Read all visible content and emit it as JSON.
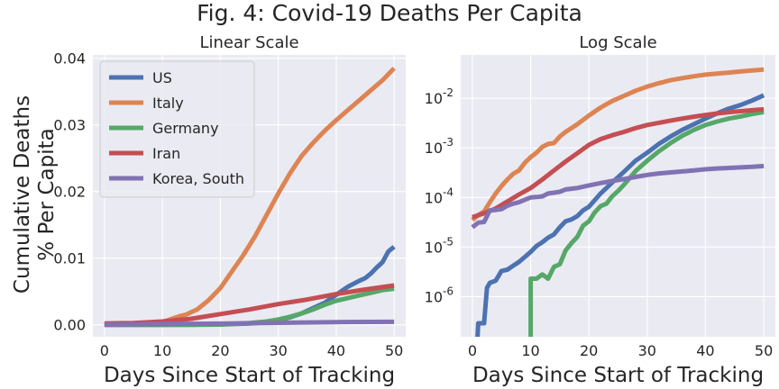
{
  "figure": {
    "title": "Fig. 4: Covid-19 Deaths Per Capita",
    "background": "#ffffff",
    "panel_color": "#eaeaf2"
  },
  "chart_data": [
    {
      "type": "line",
      "title": "Linear Scale",
      "xlabel": "Days Since Start of Tracking",
      "ylabel": [
        "Cumulative Deaths",
        "% Per Capita"
      ],
      "xlim": [
        -2,
        52
      ],
      "ylim": [
        -0.0018,
        0.0405
      ],
      "xticks": [
        0,
        10,
        20,
        30,
        40,
        50
      ],
      "yticks": [
        0.0,
        0.01,
        0.02,
        0.03,
        0.04
      ],
      "ytick_labels": [
        "0.00",
        "0.01",
        "0.02",
        "0.03",
        "0.04"
      ],
      "grid": true,
      "legend": "upper-left",
      "series": [
        {
          "name": "US",
          "color": "#4c72b0",
          "x": [
            0,
            5,
            10,
            15,
            20,
            25,
            28,
            30,
            32,
            34,
            36,
            38,
            40,
            42,
            44,
            45,
            46,
            47,
            48,
            49,
            50
          ],
          "y": [
            0,
            0,
            0,
            1e-05,
            5e-05,
            0.0002,
            0.0004,
            0.0007,
            0.0011,
            0.0017,
            0.0025,
            0.0033,
            0.0045,
            0.0057,
            0.0066,
            0.007,
            0.0077,
            0.0086,
            0.0094,
            0.011,
            0.0117
          ]
        },
        {
          "name": "Italy",
          "color": "#dd8452",
          "x": [
            0,
            4,
            6,
            8,
            10,
            11,
            12,
            13,
            14,
            15,
            16,
            18,
            20,
            22,
            24,
            26,
            28,
            30,
            32,
            34,
            36,
            38,
            40,
            42,
            44,
            46,
            48,
            50
          ],
          "y": [
            0,
            2e-05,
            0.0001,
            0.0002,
            0.00045,
            0.0007,
            0.001,
            0.0013,
            0.0015,
            0.0019,
            0.0023,
            0.0037,
            0.0055,
            0.008,
            0.0105,
            0.0133,
            0.0165,
            0.0197,
            0.0227,
            0.0253,
            0.0273,
            0.0291,
            0.0307,
            0.0322,
            0.0337,
            0.0352,
            0.0367,
            0.0385
          ]
        },
        {
          "name": "Germany",
          "color": "#55a868",
          "x": [
            0,
            10,
            15,
            20,
            25,
            28,
            30,
            32,
            34,
            36,
            38,
            40,
            42,
            44,
            46,
            48,
            50
          ],
          "y": [
            0,
            0,
            0,
            3e-05,
            0.00025,
            0.0005,
            0.0008,
            0.0012,
            0.0017,
            0.0023,
            0.003,
            0.0036,
            0.004,
            0.0044,
            0.0048,
            0.0052,
            0.0054
          ]
        },
        {
          "name": "Iran",
          "color": "#c44e52",
          "x": [
            0,
            5,
            10,
            15,
            20,
            25,
            30,
            35,
            40,
            45,
            50
          ],
          "y": [
            0.0002,
            0.00025,
            0.0005,
            0.0009,
            0.0016,
            0.0023,
            0.0031,
            0.0038,
            0.0046,
            0.0053,
            0.0059
          ]
        },
        {
          "name": "Korea, South",
          "color": "#8172b3",
          "x": [
            0,
            10,
            20,
            30,
            40,
            50
          ],
          "y": [
            2e-05,
            0.0001,
            0.00017,
            0.0003,
            0.0004,
            0.00045
          ]
        }
      ]
    },
    {
      "type": "line",
      "title": "Log Scale",
      "xlabel": "Days Since Start of Tracking",
      "yscale": "log",
      "xlim": [
        -2,
        52
      ],
      "ylim": [
        1.55e-07,
        0.075
      ],
      "xticks": [
        0,
        10,
        20,
        30,
        40,
        50
      ],
      "yticks": [
        1e-06,
        1e-05,
        0.0001,
        0.001,
        0.01
      ],
      "ytick_labels": [
        [
          "10",
          "-6"
        ],
        [
          "10",
          "-5"
        ],
        [
          "10",
          "-4"
        ],
        [
          "10",
          "-3"
        ],
        [
          "10",
          "-2"
        ]
      ],
      "grid": true,
      "series": [
        {
          "name": "US",
          "color": "#4c72b0",
          "x": [
            0.3,
            0.8,
            1,
            2,
            2.5,
            3,
            4,
            5,
            6,
            7,
            8,
            9,
            10,
            11,
            12,
            13,
            14,
            15,
            16,
            17,
            18,
            19,
            20,
            22,
            24,
            26,
            28,
            30,
            32,
            34,
            36,
            38,
            40,
            42,
            44,
            46,
            48,
            50
          ],
          "y": [
            1e-07,
            1e-07,
            2.9e-07,
            2.9e-07,
            1.5e-06,
            1.9e-06,
            2.1e-06,
            3.3e-06,
            3.5e-06,
            4.2e-06,
            5e-06,
            6.3e-06,
            8e-06,
            1.05e-05,
            1.25e-05,
            1.55e-05,
            1.8e-05,
            2.5e-05,
            3.3e-05,
            3.6e-05,
            4.2e-05,
            5.5e-05,
            6.5e-05,
            0.00012,
            0.0002,
            0.00033,
            0.00055,
            0.0008,
            0.0012,
            0.0017,
            0.0023,
            0.003,
            0.0039,
            0.005,
            0.0062,
            0.0073,
            0.009,
            0.0115
          ]
        },
        {
          "name": "Italy",
          "color": "#dd8452",
          "x": [
            0,
            1,
            2,
            3,
            4,
            5,
            6,
            7,
            8,
            9,
            10,
            11,
            12,
            13,
            14,
            15,
            16,
            18,
            20,
            22,
            24,
            26,
            28,
            30,
            32,
            34,
            36,
            38,
            40,
            42,
            44,
            46,
            48,
            50
          ],
          "y": [
            3.5e-05,
            4.4e-05,
            5.2e-05,
            8e-05,
            0.00012,
            0.00017,
            0.00023,
            0.0003,
            0.00035,
            0.0005,
            0.00065,
            0.0008,
            0.00105,
            0.0012,
            0.00125,
            0.0017,
            0.0021,
            0.003,
            0.0045,
            0.0065,
            0.0088,
            0.0112,
            0.0142,
            0.0172,
            0.0202,
            0.0232,
            0.0255,
            0.0278,
            0.03,
            0.0315,
            0.033,
            0.0348,
            0.0365,
            0.038
          ]
        },
        {
          "name": "Germany",
          "color": "#55a868",
          "x": [
            10,
            10,
            11,
            12,
            13,
            14,
            15,
            16,
            17,
            18,
            19,
            20,
            21,
            22,
            23,
            24,
            25,
            26,
            28,
            30,
            32,
            34,
            36,
            38,
            40,
            42,
            44,
            46,
            48,
            50
          ],
          "y": [
            1e-07,
            2.3e-06,
            2.3e-06,
            2.8e-06,
            2.3e-06,
            4e-06,
            4.5e-06,
            8.5e-06,
            1.2e-05,
            1.6e-05,
            2.7e-05,
            3.3e-05,
            5e-05,
            6.7e-05,
            7.5e-05,
            0.000105,
            0.000135,
            0.00018,
            0.00034,
            0.00055,
            0.00085,
            0.00125,
            0.00175,
            0.0023,
            0.0029,
            0.0034,
            0.0039,
            0.0043,
            0.0048,
            0.0053
          ]
        },
        {
          "name": "Iran",
          "color": "#c44e52",
          "x": [
            0,
            2,
            4,
            6,
            8,
            10,
            12,
            14,
            16,
            18,
            20,
            22,
            24,
            26,
            28,
            30,
            32,
            34,
            36,
            38,
            40,
            42,
            44,
            46,
            48,
            50
          ],
          "y": [
            4e-05,
            4.8e-05,
            6e-05,
            8.3e-05,
            0.000115,
            0.000155,
            0.00023,
            0.00035,
            0.00053,
            0.00078,
            0.00115,
            0.0015,
            0.0018,
            0.0021,
            0.0025,
            0.0029,
            0.0032,
            0.00355,
            0.0039,
            0.00425,
            0.0046,
            0.00495,
            0.00525,
            0.0055,
            0.00575,
            0.006
          ]
        },
        {
          "name": "Korea, South",
          "color": "#8172b3",
          "x": [
            0,
            1,
            2,
            3,
            4,
            5,
            6,
            7,
            8,
            9,
            10,
            11,
            12,
            13,
            14,
            15,
            16,
            18,
            20,
            22,
            24,
            26,
            28,
            30,
            32,
            34,
            36,
            38,
            40,
            42,
            44,
            46,
            48,
            50
          ],
          "y": [
            2.5e-05,
            3.1e-05,
            3.2e-05,
            5.5e-05,
            5.6e-05,
            5.8e-05,
            6.8e-05,
            7.5e-05,
            8e-05,
            9e-05,
            0.0001,
            0.000102,
            0.000105,
            0.00012,
            0.000125,
            0.00013,
            0.000145,
            0.000155,
            0.000175,
            0.000195,
            0.000215,
            0.000235,
            0.00026,
            0.000285,
            0.000305,
            0.00032,
            0.000335,
            0.00035,
            0.00037,
            0.000385,
            0.000395,
            0.000405,
            0.000415,
            0.00043
          ]
        }
      ]
    }
  ]
}
